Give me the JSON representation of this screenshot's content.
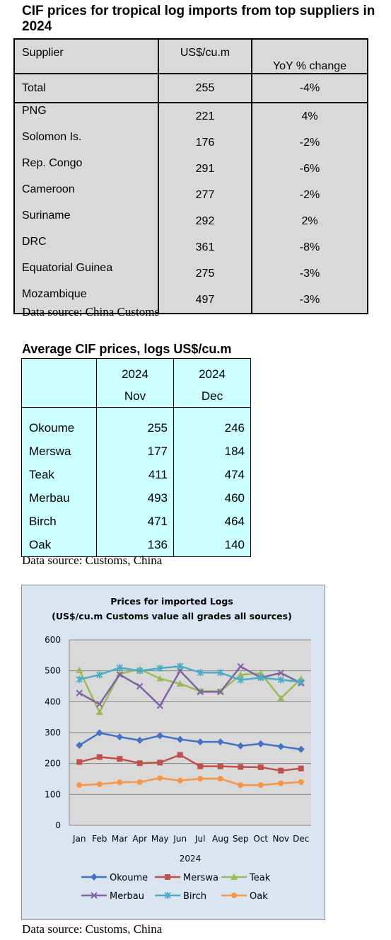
{
  "table1": {
    "title": "CIF prices for tropical log imports from top suppliers in 2024",
    "headers": [
      "Supplier",
      "US$/cu.m",
      "YoY % change"
    ],
    "total": {
      "supplier": "Total",
      "price": "255",
      "yoy": "-4%"
    },
    "rows": [
      {
        "supplier": "PNG",
        "price": "221",
        "yoy": "4%"
      },
      {
        "supplier": "Solomon Is.",
        "price": "176",
        "yoy": "-2%"
      },
      {
        "supplier": "Rep. Congo",
        "price": "291",
        "yoy": "-6%"
      },
      {
        "supplier": "Cameroon",
        "price": "277",
        "yoy": "-2%"
      },
      {
        "supplier": "Suriname",
        "price": "292",
        "yoy": "2%"
      },
      {
        "supplier": "DRC",
        "price": "361",
        "yoy": "-8%"
      },
      {
        "supplier": "Equatorial Guinea",
        "price": "275",
        "yoy": "-3%"
      },
      {
        "supplier": "Mozambique",
        "price": "497",
        "yoy": "-3%"
      }
    ],
    "source": "Data source: China Customs"
  },
  "table2": {
    "title": "Average CIF prices, logs US$/cu.m",
    "col_years": [
      "2024",
      "2024"
    ],
    "col_months": [
      "Nov",
      "Dec"
    ],
    "rows": [
      {
        "name": "Okoume",
        "nov": "255",
        "dec": "246"
      },
      {
        "name": "Merswa",
        "nov": "177",
        "dec": "184"
      },
      {
        "name": "Teak",
        "nov": "411",
        "dec": "474"
      },
      {
        "name": "Merbau",
        "nov": "493",
        "dec": "460"
      },
      {
        "name": "Birch",
        "nov": "471",
        "dec": "464"
      },
      {
        "name": "Oak",
        "nov": "136",
        "dec": "140"
      }
    ],
    "source": "Data source: Customs, China"
  },
  "chart_data": {
    "type": "line",
    "title": "Prices for imported Logs",
    "subtitle": "(US$/cu.m Customs value all grades all sources)",
    "xlabel": "2024",
    "ylabel": "",
    "categories": [
      "Jan",
      "Feb",
      "Mar",
      "Apr",
      "May",
      "Jun",
      "Jul",
      "Aug",
      "Sep",
      "Oct",
      "Nov",
      "Dec"
    ],
    "ylim": [
      0,
      600
    ],
    "yticks": [
      0,
      100,
      200,
      300,
      400,
      500,
      600
    ],
    "grid": "horizontal",
    "legend": "bottom",
    "series": [
      {
        "name": "Okoume",
        "color": "#4472c4",
        "marker": "diamond",
        "values": [
          259,
          299,
          286,
          275,
          290,
          278,
          270,
          270,
          257,
          264,
          255,
          246
        ]
      },
      {
        "name": "Merswa",
        "color": "#c0504d",
        "marker": "square",
        "values": [
          205,
          221,
          215,
          201,
          203,
          228,
          191,
          191,
          189,
          188,
          177,
          184
        ]
      },
      {
        "name": "Teak",
        "color": "#9bbb59",
        "marker": "triangle",
        "values": [
          502,
          366,
          490,
          505,
          475,
          458,
          434,
          434,
          487,
          492,
          411,
          474
        ]
      },
      {
        "name": "Merbau",
        "color": "#8064a2",
        "marker": "x",
        "values": [
          428,
          392,
          488,
          450,
          387,
          500,
          432,
          432,
          514,
          478,
          493,
          460
        ]
      },
      {
        "name": "Birch",
        "color": "#4bacc6",
        "marker": "star",
        "values": [
          472,
          487,
          510,
          500,
          508,
          515,
          494,
          494,
          470,
          478,
          471,
          464
        ]
      },
      {
        "name": "Oak",
        "color": "#f79646",
        "marker": "circle",
        "values": [
          130,
          133,
          139,
          140,
          153,
          145,
          151,
          151,
          130,
          130,
          136,
          140
        ]
      }
    ]
  },
  "chart_source": "Data source: Customs, China"
}
